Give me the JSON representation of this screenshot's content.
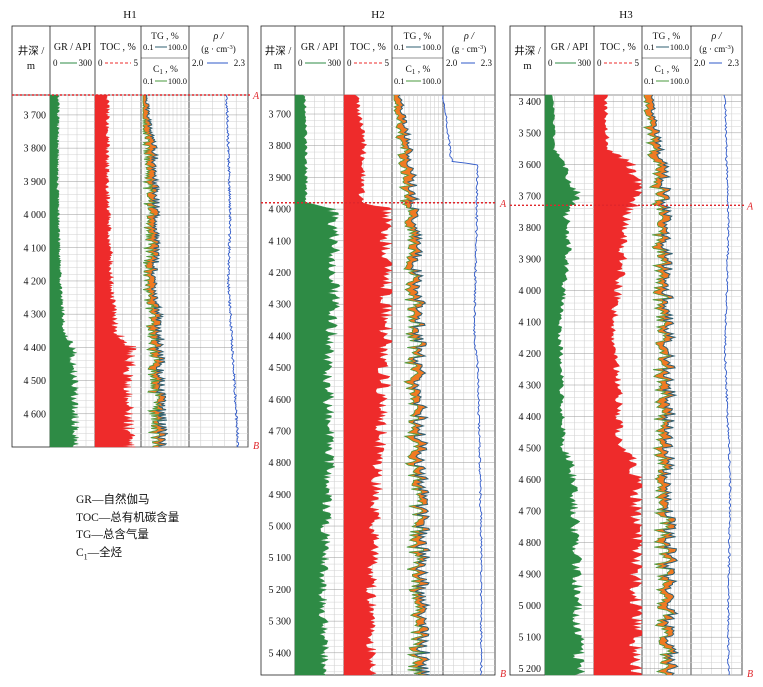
{
  "chart_data": {
    "type": "well-log",
    "wells": [
      {
        "name": "H1",
        "depth_range": [
          3640,
          4700
        ],
        "depth_ticks": [
          3700,
          3800,
          3900,
          4000,
          4100,
          4200,
          4300,
          4400,
          4500,
          4600
        ],
        "depth_tick_labels": [
          "3 700",
          "3 800",
          "3 900",
          "4 000",
          "4 100",
          "4 200",
          "4 300",
          "4 400",
          "4 500",
          "4 600"
        ],
        "marker_A_depth": 3640,
        "marker_B_depth": 4700,
        "gr_profile": [
          [
            3640,
            55
          ],
          [
            3900,
            50
          ],
          [
            4100,
            60
          ],
          [
            4250,
            75
          ],
          [
            4350,
            95
          ],
          [
            4400,
            150
          ],
          [
            4500,
            160
          ],
          [
            4600,
            165
          ],
          [
            4700,
            170
          ]
        ],
        "toc_profile": [
          [
            3640,
            1.4
          ],
          [
            3900,
            1.3
          ],
          [
            4100,
            1.6
          ],
          [
            4250,
            1.9
          ],
          [
            4350,
            2.2
          ],
          [
            4400,
            3.9
          ],
          [
            4500,
            3.5
          ],
          [
            4600,
            3.6
          ],
          [
            4700,
            3.7
          ]
        ],
        "tg_profile": [
          [
            3640,
            12
          ],
          [
            3700,
            15
          ],
          [
            3800,
            28
          ],
          [
            3900,
            30
          ],
          [
            4000,
            32
          ],
          [
            4100,
            33
          ],
          [
            4200,
            27
          ],
          [
            4300,
            36
          ],
          [
            4400,
            40
          ],
          [
            4500,
            42
          ],
          [
            4600,
            44
          ],
          [
            4700,
            45
          ]
        ],
        "rho_profile": [
          [
            3640,
            2.19
          ],
          [
            3800,
            2.2
          ],
          [
            4000,
            2.21
          ],
          [
            4200,
            2.2
          ],
          [
            4400,
            2.22
          ],
          [
            4600,
            2.24
          ],
          [
            4700,
            2.25
          ]
        ]
      },
      {
        "name": "H2",
        "depth_range": [
          3640,
          5470
        ],
        "depth_ticks": [
          3700,
          3800,
          3900,
          4000,
          4100,
          4200,
          4300,
          4400,
          4500,
          4600,
          4700,
          4800,
          4900,
          5000,
          5100,
          5200,
          5300,
          5400
        ],
        "depth_tick_labels": [
          "3 700",
          "3 800",
          "3 900",
          "4 000",
          "4 100",
          "4 200",
          "4 300",
          "4 400",
          "4 500",
          "4 600",
          "4 700",
          "4 800",
          "4 900",
          "5 000",
          "5 100",
          "5 200",
          "5 300",
          "5 400"
        ],
        "marker_A_depth": 3980,
        "marker_B_depth": 5470,
        "gr_profile": [
          [
            3640,
            60
          ],
          [
            3980,
            70
          ],
          [
            4000,
            230
          ],
          [
            4300,
            240
          ],
          [
            4500,
            200
          ],
          [
            4800,
            210
          ],
          [
            5000,
            190
          ],
          [
            5200,
            170
          ],
          [
            5470,
            180
          ]
        ],
        "toc_profile": [
          [
            3640,
            1.3
          ],
          [
            3800,
            2.0
          ],
          [
            3980,
            1.8
          ],
          [
            4000,
            4.6
          ],
          [
            4400,
            4.5
          ],
          [
            4700,
            3.8
          ],
          [
            5000,
            3.2
          ],
          [
            5200,
            2.8
          ],
          [
            5470,
            2.9
          ]
        ],
        "tg_profile": [
          [
            3640,
            15
          ],
          [
            3800,
            35
          ],
          [
            3900,
            40
          ],
          [
            4000,
            45
          ],
          [
            4200,
            50
          ],
          [
            4400,
            55
          ],
          [
            4600,
            55
          ],
          [
            4800,
            58
          ],
          [
            5000,
            60
          ],
          [
            5200,
            60
          ],
          [
            5470,
            60
          ]
        ],
        "rho_profile": [
          [
            3640,
            2.0
          ],
          [
            3850,
            2.05
          ],
          [
            3860,
            2.2
          ],
          [
            4400,
            2.18
          ],
          [
            4500,
            2.2
          ],
          [
            5000,
            2.22
          ],
          [
            5470,
            2.22
          ]
        ]
      },
      {
        "name": "H3",
        "depth_range": [
          3380,
          5220
        ],
        "depth_ticks": [
          3400,
          3500,
          3600,
          3700,
          3800,
          3900,
          4000,
          4100,
          4200,
          4300,
          4400,
          4500,
          4600,
          4700,
          4800,
          4900,
          5000,
          5100,
          5200
        ],
        "depth_tick_labels": [
          "3 400",
          "3 500",
          "3 600",
          "3 700",
          "3 800",
          "3 900",
          "4 000",
          "4 100",
          "4 200",
          "4 300",
          "4 400",
          "4 500",
          "4 600",
          "4 700",
          "4 800",
          "4 900",
          "5 000",
          "5 100",
          "5 200"
        ],
        "marker_A_depth": 3730,
        "marker_B_depth": 5220,
        "gr_profile": [
          [
            3380,
            50
          ],
          [
            3550,
            55
          ],
          [
            3600,
            110
          ],
          [
            3700,
            200
          ],
          [
            3750,
            130
          ],
          [
            3900,
            140
          ],
          [
            4100,
            90
          ],
          [
            4300,
            100
          ],
          [
            4500,
            110
          ],
          [
            4550,
            160
          ],
          [
            4800,
            190
          ],
          [
            5000,
            200
          ],
          [
            5220,
            210
          ]
        ],
        "toc_profile": [
          [
            3380,
            1.2
          ],
          [
            3550,
            1.4
          ],
          [
            3600,
            3.8
          ],
          [
            3700,
            4.8
          ],
          [
            3750,
            3.6
          ],
          [
            3900,
            3.0
          ],
          [
            4100,
            2.0
          ],
          [
            4300,
            2.5
          ],
          [
            4500,
            2.8
          ],
          [
            4550,
            4.5
          ],
          [
            4800,
            4.6
          ],
          [
            5000,
            4.4
          ],
          [
            5220,
            4.5
          ]
        ],
        "tg_profile": [
          [
            3380,
            18
          ],
          [
            3500,
            30
          ],
          [
            3600,
            45
          ],
          [
            3800,
            50
          ],
          [
            4000,
            52
          ],
          [
            4200,
            55
          ],
          [
            4400,
            55
          ],
          [
            4600,
            55
          ],
          [
            4800,
            58
          ],
          [
            5000,
            58
          ],
          [
            5220,
            60
          ]
        ],
        "rho_profile": [
          [
            3380,
            2.2
          ],
          [
            3800,
            2.22
          ],
          [
            4200,
            2.2
          ],
          [
            4600,
            2.23
          ],
          [
            5000,
            2.22
          ],
          [
            5220,
            2.22
          ]
        ]
      }
    ],
    "headers": {
      "depth": "井深 /",
      "depth_unit": "m",
      "gr": "GR / API",
      "gr_min": "0",
      "gr_max": "300",
      "toc": "TOC , %",
      "toc_min": "0",
      "toc_max": "5",
      "tg": "TG , %",
      "tg_min": "0.1",
      "tg_max": "100.0",
      "c1": "C",
      "c1_sub": "1",
      "c1_tail": " , %",
      "c1_min": "0.1",
      "c1_max": "100.0",
      "rho": "ρ /",
      "rho_unit_a": "(g · cm",
      "rho_unit_sup": "-3",
      "rho_unit_b": ")",
      "rho_min": "2.0",
      "rho_max": "2.3",
      "marker_a": "A",
      "marker_b": "B"
    },
    "colors": {
      "gr": "#2e8b45",
      "toc": "#ee2b2b",
      "tg": "#2f5f72",
      "c1": "#4a9a3c",
      "fill": "#f07a22",
      "rho": "#2f59c9",
      "marker": "#e0262b"
    }
  },
  "legend": {
    "gr": "GR—自然伽马",
    "toc": "TOC—总有机碳含量",
    "tg": "TG—总含气量",
    "c1_prefix": "C",
    "c1_sub": "1",
    "c1_suffix": "—全烃"
  }
}
